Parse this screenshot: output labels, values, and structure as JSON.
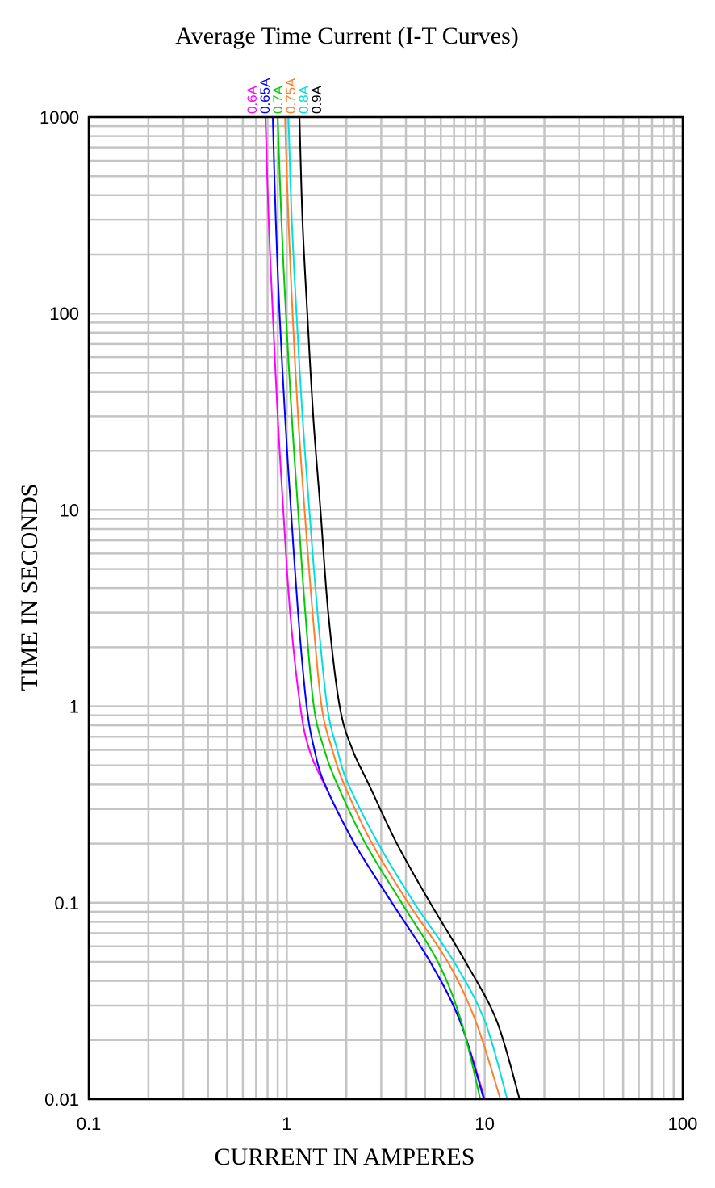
{
  "chart_data": {
    "type": "line",
    "title": "Average Time Current (I-T Curves)",
    "xlabel": "CURRENT IN AMPERES",
    "ylabel": "TIME IN SECONDS",
    "x_scale": "log",
    "y_scale": "log",
    "xlim": [
      0.1,
      100
    ],
    "ylim": [
      0.01,
      1000
    ],
    "x_ticks": [
      0.1,
      1,
      10,
      100
    ],
    "x_tick_labels": [
      "0.1",
      "1",
      "10",
      "100"
    ],
    "y_ticks": [
      0.01,
      0.1,
      1,
      10,
      100,
      1000
    ],
    "y_tick_labels": [
      "0.01",
      "0.1",
      "1",
      "10",
      "100",
      "1000"
    ],
    "grid": true,
    "legend_placement": "top, rotated labels above plot",
    "series": [
      {
        "name": "0.6A",
        "color": "#ff00ff",
        "points": [
          [
            0.78,
            1000
          ],
          [
            0.81,
            300
          ],
          [
            0.85,
            100
          ],
          [
            0.9,
            30
          ],
          [
            0.96,
            10
          ],
          [
            1.04,
            3
          ],
          [
            1.17,
            1
          ],
          [
            1.3,
            0.6
          ],
          [
            1.55,
            0.4
          ],
          [
            2.2,
            0.2
          ],
          [
            3.4,
            0.1
          ],
          [
            5.3,
            0.05
          ],
          [
            7.5,
            0.025
          ],
          [
            10.0,
            0.01
          ]
        ]
      },
      {
        "name": "0.65A",
        "color": "#0000ff",
        "points": [
          [
            0.85,
            1000
          ],
          [
            0.88,
            300
          ],
          [
            0.92,
            100
          ],
          [
            0.98,
            30
          ],
          [
            1.05,
            10
          ],
          [
            1.14,
            3
          ],
          [
            1.26,
            1
          ],
          [
            1.38,
            0.6
          ],
          [
            1.56,
            0.4
          ],
          [
            2.2,
            0.2
          ],
          [
            3.4,
            0.1
          ],
          [
            5.3,
            0.05
          ],
          [
            7.5,
            0.025
          ],
          [
            9.9,
            0.01
          ]
        ]
      },
      {
        "name": "0.7A",
        "color": "#00cc00",
        "points": [
          [
            0.9,
            1000
          ],
          [
            0.94,
            300
          ],
          [
            0.99,
            100
          ],
          [
            1.06,
            30
          ],
          [
            1.14,
            10
          ],
          [
            1.24,
            3
          ],
          [
            1.37,
            1
          ],
          [
            1.55,
            0.6
          ],
          [
            1.8,
            0.4
          ],
          [
            2.5,
            0.2
          ],
          [
            3.8,
            0.1
          ],
          [
            5.8,
            0.05
          ],
          [
            7.6,
            0.025
          ],
          [
            9.5,
            0.01
          ]
        ]
      },
      {
        "name": "0.75A",
        "color": "#ff7f27",
        "points": [
          [
            0.98,
            1000
          ],
          [
            1.02,
            300
          ],
          [
            1.07,
            100
          ],
          [
            1.14,
            30
          ],
          [
            1.23,
            10
          ],
          [
            1.35,
            3
          ],
          [
            1.5,
            1
          ],
          [
            1.7,
            0.6
          ],
          [
            1.95,
            0.4
          ],
          [
            2.7,
            0.2
          ],
          [
            4.1,
            0.1
          ],
          [
            6.5,
            0.05
          ],
          [
            9.0,
            0.025
          ],
          [
            12.0,
            0.01
          ]
        ]
      },
      {
        "name": "0.8A",
        "color": "#00e0e0",
        "points": [
          [
            1.02,
            1000
          ],
          [
            1.06,
            300
          ],
          [
            1.12,
            100
          ],
          [
            1.2,
            30
          ],
          [
            1.3,
            10
          ],
          [
            1.43,
            3
          ],
          [
            1.6,
            1
          ],
          [
            1.8,
            0.6
          ],
          [
            2.05,
            0.4
          ],
          [
            2.9,
            0.2
          ],
          [
            4.4,
            0.1
          ],
          [
            7.0,
            0.05
          ],
          [
            10.0,
            0.025
          ],
          [
            13.0,
            0.01
          ]
        ]
      },
      {
        "name": "0.9A",
        "color": "#000000",
        "points": [
          [
            1.16,
            1000
          ],
          [
            1.2,
            300
          ],
          [
            1.27,
            100
          ],
          [
            1.36,
            30
          ],
          [
            1.48,
            10
          ],
          [
            1.62,
            3
          ],
          [
            1.85,
            1
          ],
          [
            2.15,
            0.6
          ],
          [
            2.6,
            0.4
          ],
          [
            3.6,
            0.2
          ],
          [
            5.3,
            0.1
          ],
          [
            8.0,
            0.05
          ],
          [
            11.5,
            0.025
          ],
          [
            15.0,
            0.01
          ]
        ]
      }
    ]
  }
}
